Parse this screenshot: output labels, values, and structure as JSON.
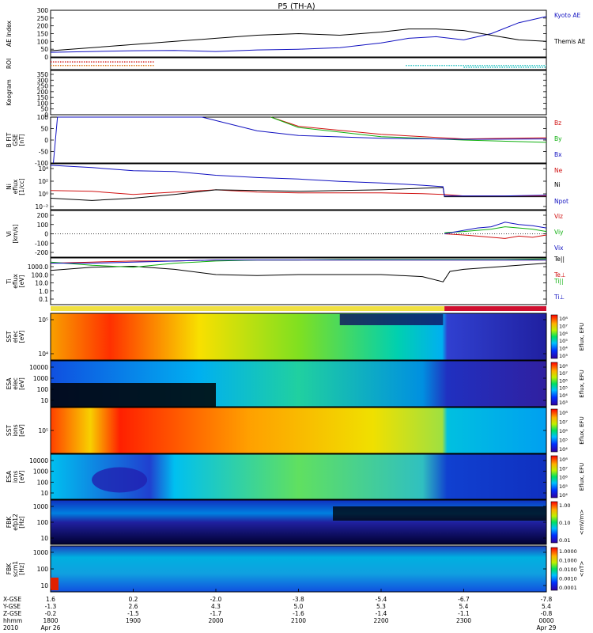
{
  "title": "P5 (TH-A)",
  "colors": {
    "blue": "#1010c0",
    "red": "#d01010",
    "green": "#10b010",
    "black": "#000000",
    "cyan": "#20c0c0",
    "orange": "#e07010"
  },
  "time_axis": {
    "rows": [
      {
        "label": "X-GSE",
        "values": [
          "1.6",
          "0.2",
          "-2.0",
          "-3.8",
          "-5.4",
          "-6.7",
          "-7.8"
        ]
      },
      {
        "label": "Y-GSE",
        "values": [
          "-1.3",
          "2.6",
          "4.3",
          "5.0",
          "5.3",
          "5.4",
          "5.4"
        ]
      },
      {
        "label": "Z-GSE",
        "values": [
          "-0.2",
          "-1.5",
          "-1.7",
          "-1.6",
          "-1.4",
          "-1.1",
          "-0.8"
        ]
      },
      {
        "label": "hhmm",
        "values": [
          "1800",
          "1900",
          "2000",
          "2100",
          "2200",
          "2300",
          "0000"
        ]
      },
      {
        "label": "2010",
        "values": [
          "Apr 26",
          "",
          "",
          "",
          "",
          "",
          "Apr 29"
        ]
      }
    ]
  },
  "chart_data": [
    {
      "type": "line",
      "name": "ae",
      "ylabel": "AE Index",
      "ylim": [
        0,
        300
      ],
      "ticks": [
        "300",
        "250",
        "200",
        "150",
        "100",
        "50",
        "0"
      ],
      "x": [
        1800,
        1830,
        1900,
        1930,
        2000,
        2030,
        2100,
        2130,
        2200,
        2220,
        2240,
        2300,
        2320,
        2340,
        2400
      ],
      "series": [
        {
          "name": "Kyoto AE",
          "color": "blue",
          "values": [
            30,
            35,
            40,
            42,
            35,
            45,
            50,
            60,
            90,
            120,
            130,
            110,
            150,
            220,
            260
          ]
        },
        {
          "name": "Themis AE",
          "color": "black",
          "values": [
            40,
            60,
            80,
            100,
            120,
            140,
            150,
            140,
            160,
            180,
            180,
            170,
            140,
            110,
            100
          ]
        }
      ]
    },
    {
      "type": "bar",
      "name": "roi",
      "ylabel": "ROI",
      "segments": [
        {
          "start": 1800,
          "end": 1915,
          "level": 0.25,
          "color": "orange"
        },
        {
          "start": 1800,
          "end": 1915,
          "level": 0.75,
          "color": "red"
        },
        {
          "start": 2218,
          "end": 2400,
          "level": 0.25,
          "color": "cyan"
        },
        {
          "start": 2300,
          "end": 2400,
          "level": 0.0,
          "color": "cyan"
        }
      ]
    },
    {
      "type": "line",
      "name": "keogram",
      "ylabel": "Keogram",
      "ylim": [
        0,
        350
      ],
      "ticks": [
        "350",
        "300",
        "250",
        "200",
        "150",
        "100",
        "50",
        "0"
      ]
    },
    {
      "type": "line",
      "name": "bfit",
      "ylabel": "B FIT",
      "ylabel2": "GSE",
      "ylabel3": "[nT]",
      "ylim": [
        -100,
        100
      ],
      "ticks": [
        "100",
        "50",
        "0",
        "-50",
        "-100"
      ],
      "series": [
        {
          "name": "Bz",
          "color": "red",
          "x": [
            2040,
            2100,
            2200,
            2300,
            2400
          ],
          "values": [
            100,
            60,
            25,
            5,
            10
          ]
        },
        {
          "name": "By",
          "color": "green",
          "x": [
            2040,
            2100,
            2200,
            2300,
            2400
          ],
          "values": [
            100,
            55,
            15,
            0,
            -10
          ]
        },
        {
          "name": "Bx",
          "color": "blue",
          "x": [
            1802,
            1805,
            1950,
            2030,
            2100,
            2200,
            2300,
            2400
          ],
          "values": [
            -100,
            100,
            100,
            40,
            20,
            8,
            3,
            5
          ]
        }
      ]
    },
    {
      "type": "line",
      "name": "ni",
      "ylabel": "Ni",
      "ylabel2": "eflux",
      "ylabel3": "[1/cc]",
      "yscale": "log",
      "ticks": [
        "10⁴",
        "10²",
        "10⁰",
        "10⁻²"
      ],
      "ylim": [
        -2,
        4
      ],
      "x": [
        1800,
        1830,
        1900,
        1930,
        2000,
        2030,
        2100,
        2130,
        2200,
        2230,
        2245,
        2246,
        2300,
        2330,
        2400
      ],
      "series": [
        {
          "name": "Ne",
          "color": "red",
          "values": [
            0.5,
            0.4,
            0.0,
            0.3,
            0.6,
            0.3,
            0.2,
            0.2,
            0.2,
            0.1,
            0.0,
            0.0,
            -0.2,
            -0.2,
            -0.2
          ]
        },
        {
          "name": "Ni",
          "color": "black",
          "values": [
            -0.5,
            -0.8,
            -0.5,
            0.0,
            0.6,
            0.5,
            0.4,
            0.5,
            0.6,
            0.8,
            0.9,
            -0.3,
            -0.3,
            -0.3,
            -0.3
          ]
        },
        {
          "name": "Npot",
          "color": "blue",
          "values": [
            3.8,
            3.5,
            3.1,
            3.0,
            2.5,
            2.2,
            2.0,
            1.7,
            1.5,
            1.2,
            1.0,
            -0.2,
            -0.2,
            -0.2,
            -0.1
          ]
        }
      ]
    },
    {
      "type": "line",
      "name": "vi",
      "ylabel": "Vi",
      "ylabel2": "[km/s]",
      "ylim": [
        -200,
        200
      ],
      "ticks": [
        "200",
        "100",
        "0",
        "-100",
        "-200"
      ],
      "x": [
        2246,
        2300,
        2310,
        2320,
        2330,
        2340,
        2350,
        2400
      ],
      "series": [
        {
          "name": "Viz",
          "color": "red",
          "values": [
            0,
            -10,
            -20,
            -30,
            -40,
            -20,
            -30,
            -10
          ]
        },
        {
          "name": "Viy",
          "color": "green",
          "values": [
            10,
            20,
            30,
            40,
            60,
            50,
            40,
            20
          ]
        },
        {
          "name": "Vix",
          "color": "blue",
          "values": [
            0,
            30,
            50,
            60,
            100,
            80,
            70,
            50
          ]
        }
      ]
    },
    {
      "type": "line",
      "name": "ti",
      "ylabel": "Ti",
      "ylabel2": "eflux",
      "ylabel3": "[eV]",
      "yscale": "log",
      "ylim": [
        -1,
        3.5
      ],
      "ticks": [
        "1000.0",
        "100.0",
        "10.0",
        "1.0",
        "0.1"
      ],
      "x": [
        1800,
        1830,
        1900,
        1930,
        2000,
        2030,
        2100,
        2130,
        2200,
        2230,
        2245,
        2250,
        2300,
        2330,
        2400
      ],
      "series": [
        {
          "name": "Te||",
          "color": "black",
          "values": [
            2.3,
            2.6,
            2.7,
            2.4,
            1.9,
            1.8,
            1.9,
            1.9,
            1.9,
            1.7,
            1.2,
            2.2,
            2.4,
            2.7,
            3.0
          ]
        },
        {
          "name": "Te⊥",
          "color": "red",
          "values": [
            3.0,
            3.1,
            3.2,
            3.2,
            3.3,
            3.3,
            3.3,
            3.3,
            3.3,
            3.3,
            3.3,
            3.3,
            3.3,
            3.3,
            3.3
          ]
        },
        {
          "name": "Ti||",
          "color": "green",
          "values": [
            3.1,
            2.8,
            2.6,
            3.0,
            3.2,
            3.3,
            3.3,
            3.35,
            3.35,
            3.35,
            3.35,
            3.35,
            3.35,
            3.35,
            3.4
          ]
        },
        {
          "name": "Ti⊥",
          "color": "blue",
          "values": [
            3.0,
            3.0,
            3.1,
            3.2,
            3.3,
            3.3,
            3.3,
            3.3,
            3.3,
            3.3,
            3.3,
            3.3,
            3.3,
            3.3,
            3.3
          ]
        }
      ]
    },
    {
      "type": "bar",
      "name": "mode_bar",
      "segments": [
        {
          "start": 1800,
          "end": 2246,
          "color": "#f0e040"
        },
        {
          "start": 2246,
          "end": 2400,
          "color": "#d01030"
        }
      ]
    },
    {
      "type": "heatmap",
      "name": "sst-e",
      "ylabel": "SST",
      "ylabel2": "elec",
      "ylabel3": "[eV]",
      "ticks": [
        "10⁵",
        "10⁴"
      ],
      "colorbar": [
        "10⁸",
        "10⁷",
        "10⁶",
        "10⁵",
        "10⁴",
        "10³"
      ],
      "cblabel": "Eflux, EFU"
    },
    {
      "type": "heatmap",
      "name": "esa-e",
      "ylabel": "ESA",
      "ylabel2": "elec",
      "ylabel3": "[eV]",
      "ticks": [
        "10000",
        "1000",
        "100",
        "10"
      ],
      "colorbar": [
        "10⁸",
        "10⁷",
        "10⁶",
        "10⁵",
        "10⁴",
        "10³"
      ],
      "cblabel": "Eflux, EFU"
    },
    {
      "type": "heatmap",
      "name": "sst-i",
      "ylabel": "SST",
      "ylabel2": "ions",
      "ylabel3": "[eV]",
      "ticks": [
        "10⁵"
      ],
      "colorbar": [
        "10⁸",
        "10⁷",
        "10⁶",
        "10⁵",
        "10⁴"
      ],
      "cblabel": "Eflux, EFU"
    },
    {
      "type": "heatmap",
      "name": "esa-i",
      "ylabel": "ESA",
      "ylabel2": "ions",
      "ylabel3": "[eV]",
      "ticks": [
        "10000",
        "1000",
        "100",
        "10"
      ],
      "colorbar": [
        "10⁸",
        "10⁷",
        "10⁶",
        "10⁵",
        "10⁴"
      ],
      "cblabel": "Eflux, EFU"
    },
    {
      "type": "heatmap",
      "name": "fbk-e",
      "ylabel": "FBK",
      "ylabel2": "efp12",
      "ylabel3": "[Hz]",
      "ticks": [
        "1000",
        "100",
        "10"
      ],
      "colorbar": [
        "1.00",
        "0.10",
        "0.01"
      ],
      "cblabel": "<mV/m>"
    },
    {
      "type": "heatmap",
      "name": "fbk-b",
      "ylabel": "FBK",
      "ylabel2": "scm1",
      "ylabel3": "[Hz]",
      "ticks": [
        "1000",
        "100",
        "10"
      ],
      "colorbar": [
        "1.0000",
        "0.1000",
        "0.0100",
        "0.0010",
        "0.0001"
      ],
      "cblabel": "<nT>"
    }
  ]
}
